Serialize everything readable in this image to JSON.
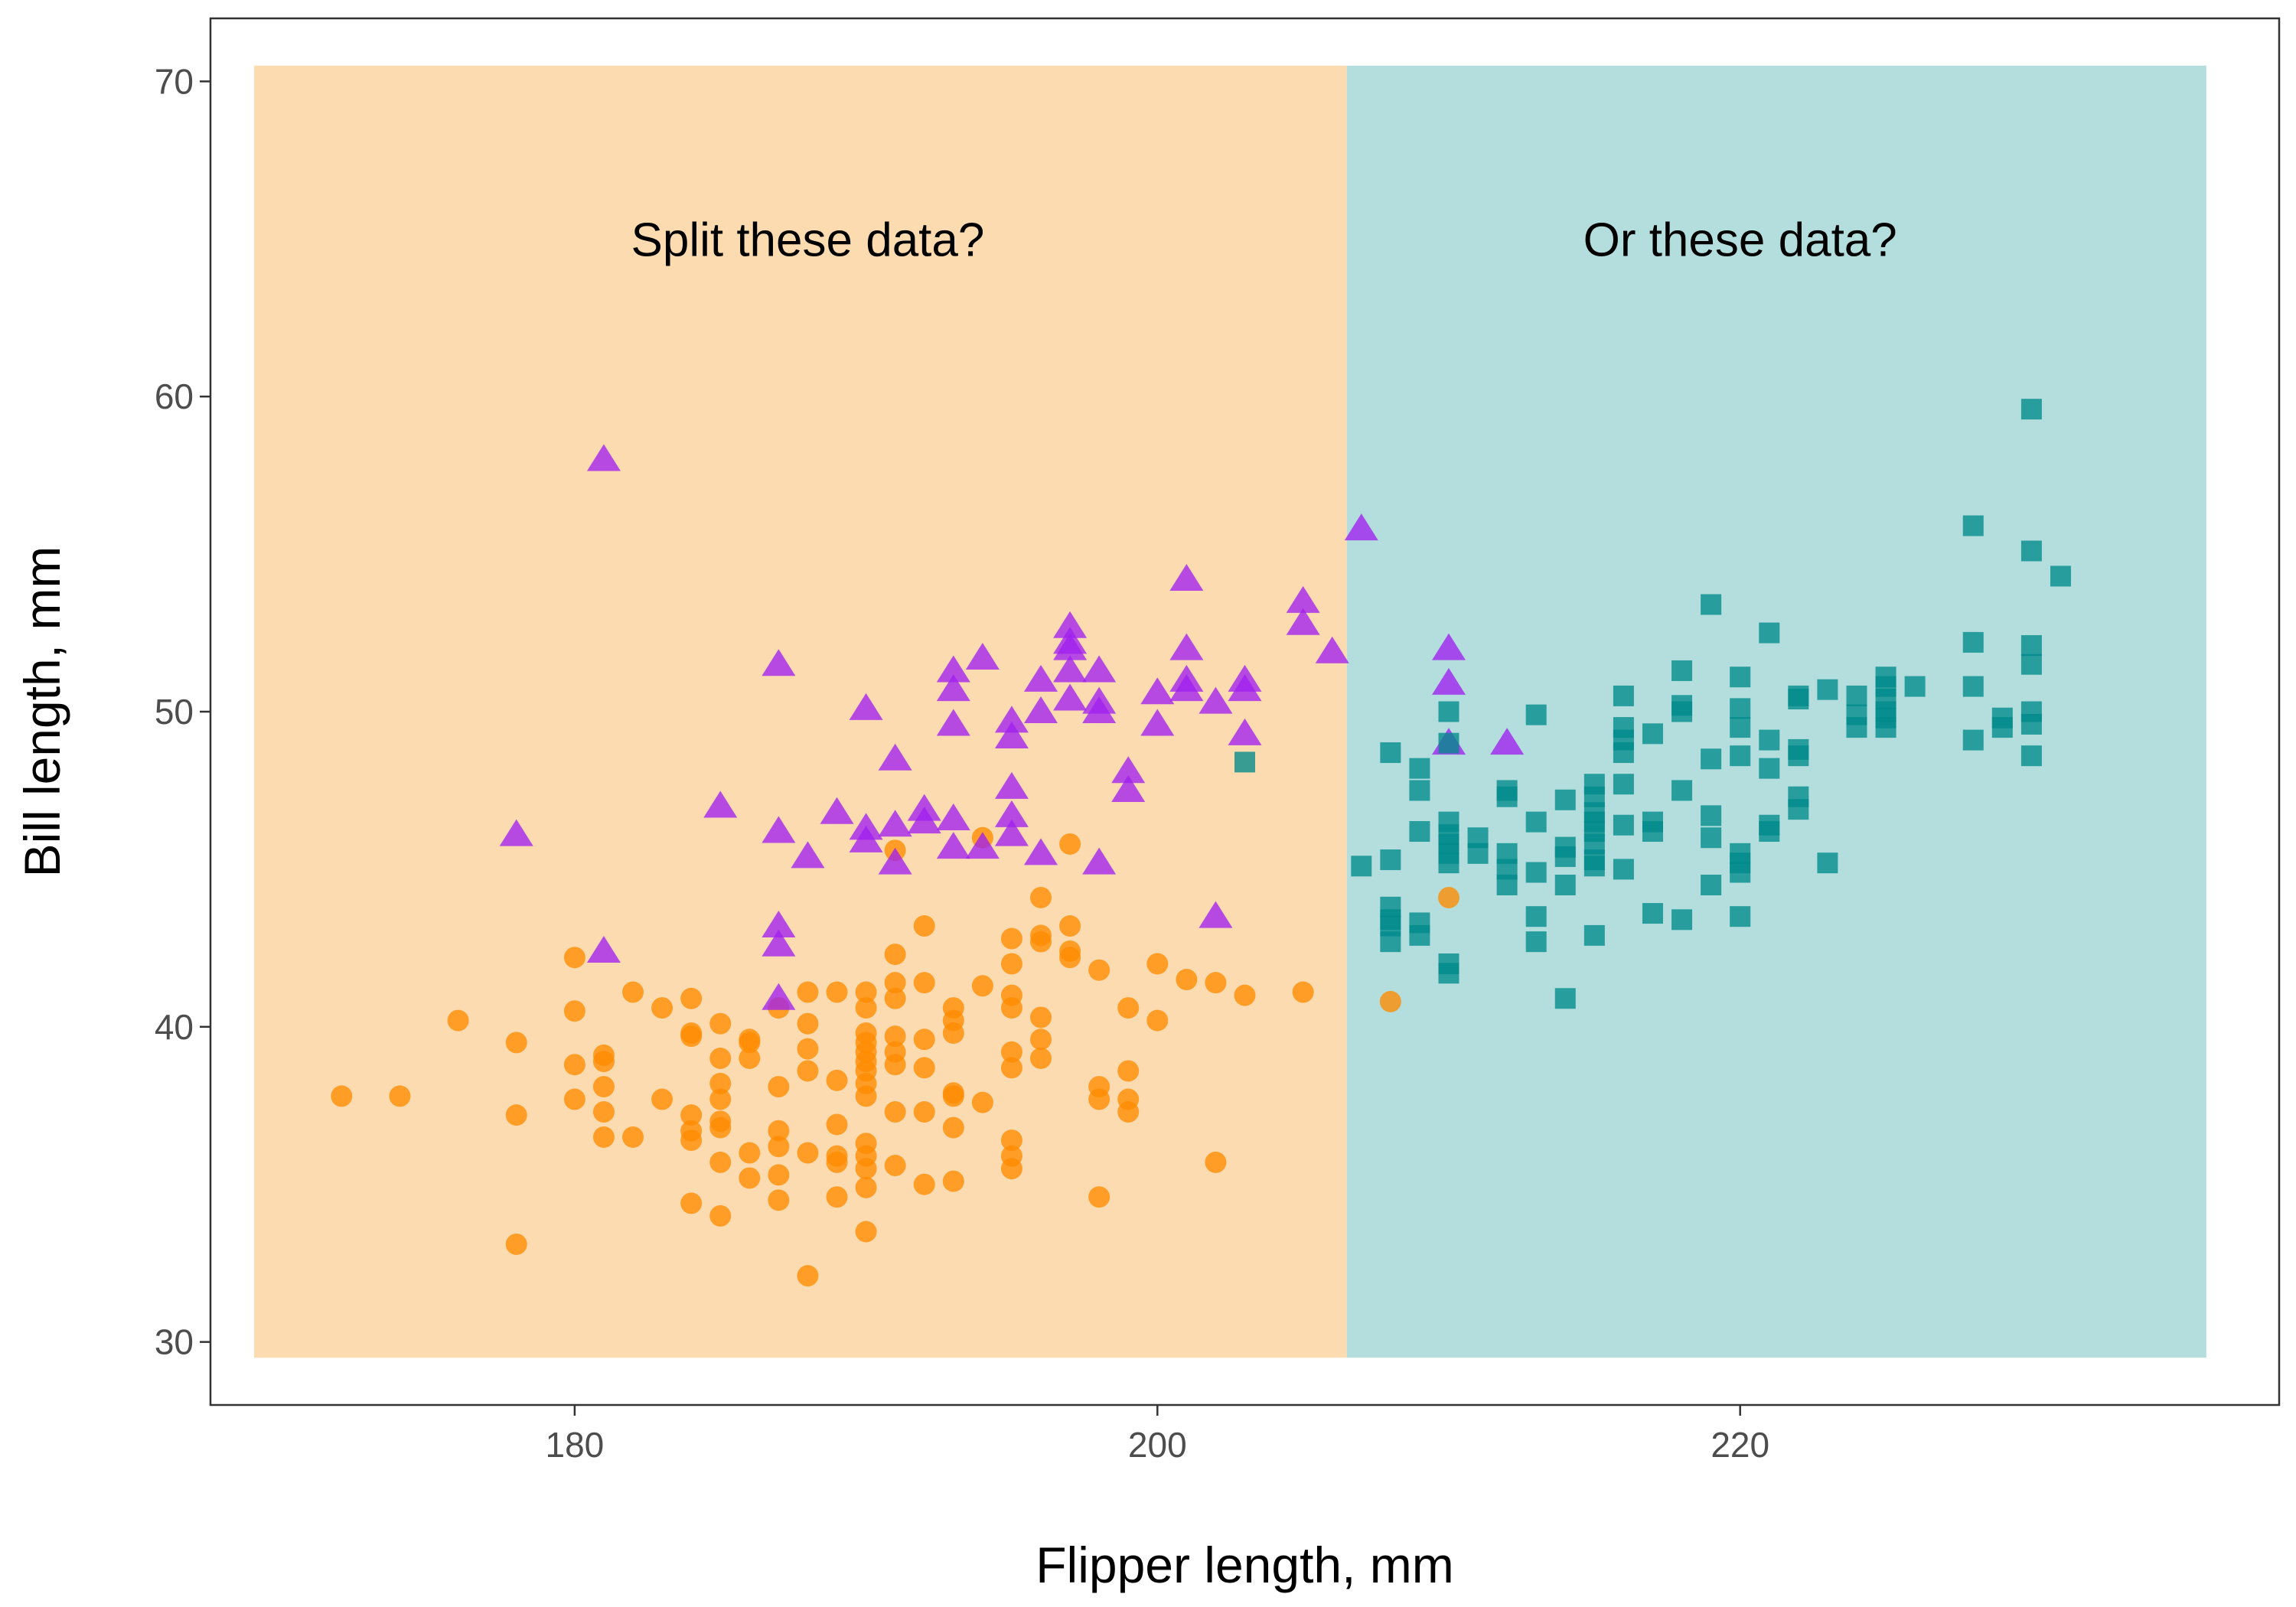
{
  "chart_data": {
    "type": "scatter",
    "title": "",
    "xlabel": "Flipper length, mm",
    "ylabel": "Bill length, mm",
    "xlim": [
      167.5,
      238.5
    ],
    "ylim": [
      28,
      72
    ],
    "x_ticks": [
      180,
      200,
      220
    ],
    "y_ticks": [
      30,
      40,
      50,
      60,
      70
    ],
    "grid": false,
    "legend": "none",
    "colors": {
      "region_left": "#fddbb0",
      "region_right": "#b3dedd",
      "circle_series": "#ff8c00",
      "triangle_series": "#a020f0",
      "square_series": "#008b8b",
      "panel_border": "#333333"
    },
    "regions": [
      {
        "x_from": 169,
        "x_to": 206.5,
        "y_from": 29.5,
        "y_to": 70.5,
        "fill": "#fddbb0"
      },
      {
        "x_from": 206.5,
        "x_to": 236,
        "y_from": 29.5,
        "y_to": 70.5,
        "fill": "#b3dedd"
      }
    ],
    "annotations": [
      {
        "text": "Split these data?",
        "x": 188,
        "y": 65
      },
      {
        "text": "Or these data?",
        "x": 220,
        "y": 65
      }
    ],
    "series": [
      {
        "marker": "circle",
        "color": "#ff8c00",
        "points": [
          [
            172,
            37.8
          ],
          [
            174,
            37.8
          ],
          [
            176,
            40.2
          ],
          [
            178,
            39.5
          ],
          [
            178,
            37.2
          ],
          [
            178,
            33.1
          ],
          [
            180,
            42.2
          ],
          [
            180,
            40.5
          ],
          [
            180,
            38.8
          ],
          [
            180,
            37.7
          ],
          [
            181,
            39.1
          ],
          [
            181,
            38.9
          ],
          [
            181,
            38.1
          ],
          [
            181,
            37.3
          ],
          [
            181,
            36.5
          ],
          [
            182,
            41.1
          ],
          [
            182,
            36.5
          ],
          [
            183,
            40.6
          ],
          [
            183,
            37.7
          ],
          [
            184,
            40.9
          ],
          [
            184,
            39.8
          ],
          [
            184,
            39.7
          ],
          [
            184,
            37.2
          ],
          [
            184,
            36.7
          ],
          [
            184,
            36.4
          ],
          [
            184,
            34.4
          ],
          [
            185,
            40.1
          ],
          [
            185,
            39.0
          ],
          [
            185,
            38.2
          ],
          [
            185,
            37.7
          ],
          [
            185,
            37.0
          ],
          [
            185,
            36.8
          ],
          [
            185,
            35.7
          ],
          [
            185,
            34.0
          ],
          [
            186,
            39.6
          ],
          [
            186,
            39.5
          ],
          [
            186,
            39.0
          ],
          [
            186,
            36.0
          ],
          [
            186,
            35.2
          ],
          [
            187,
            40.6
          ],
          [
            187,
            38.1
          ],
          [
            187,
            36.7
          ],
          [
            187,
            36.2
          ],
          [
            187,
            35.3
          ],
          [
            187,
            34.5
          ],
          [
            188,
            41.1
          ],
          [
            188,
            40.1
          ],
          [
            188,
            39.3
          ],
          [
            188,
            38.6
          ],
          [
            188,
            36.0
          ],
          [
            188,
            32.1
          ],
          [
            189,
            41.1
          ],
          [
            189,
            38.3
          ],
          [
            189,
            36.9
          ],
          [
            189,
            35.9
          ],
          [
            189,
            35.7
          ],
          [
            189,
            34.6
          ],
          [
            190,
            41.1
          ],
          [
            190,
            40.6
          ],
          [
            190,
            39.8
          ],
          [
            190,
            39.5
          ],
          [
            190,
            39.2
          ],
          [
            190,
            38.9
          ],
          [
            190,
            38.6
          ],
          [
            190,
            38.2
          ],
          [
            190,
            37.8
          ],
          [
            190,
            36.3
          ],
          [
            190,
            35.9
          ],
          [
            190,
            35.5
          ],
          [
            190,
            34.9
          ],
          [
            190,
            33.5
          ],
          [
            191,
            45.6
          ],
          [
            191,
            42.3
          ],
          [
            191,
            41.4
          ],
          [
            191,
            40.9
          ],
          [
            191,
            39.7
          ],
          [
            191,
            39.2
          ],
          [
            191,
            38.8
          ],
          [
            191,
            37.3
          ],
          [
            191,
            35.6
          ],
          [
            192,
            43.2
          ],
          [
            192,
            41.4
          ],
          [
            192,
            39.6
          ],
          [
            192,
            38.7
          ],
          [
            192,
            37.3
          ],
          [
            192,
            35.0
          ],
          [
            193,
            40.6
          ],
          [
            193,
            40.2
          ],
          [
            193,
            39.8
          ],
          [
            193,
            37.9
          ],
          [
            193,
            37.8
          ],
          [
            193,
            36.8
          ],
          [
            193,
            35.1
          ],
          [
            194,
            46.0
          ],
          [
            194,
            41.3
          ],
          [
            194,
            37.6
          ],
          [
            195,
            42.8
          ],
          [
            195,
            42.0
          ],
          [
            195,
            41.0
          ],
          [
            195,
            40.6
          ],
          [
            195,
            39.2
          ],
          [
            195,
            38.7
          ],
          [
            195,
            36.4
          ],
          [
            195,
            35.9
          ],
          [
            195,
            35.5
          ],
          [
            196,
            44.1
          ],
          [
            196,
            42.9
          ],
          [
            196,
            42.7
          ],
          [
            196,
            40.3
          ],
          [
            196,
            39.6
          ],
          [
            196,
            39.0
          ],
          [
            197,
            45.8
          ],
          [
            197,
            43.2
          ],
          [
            197,
            42.4
          ],
          [
            197,
            42.2
          ],
          [
            198,
            41.8
          ],
          [
            198,
            38.1
          ],
          [
            198,
            37.7
          ],
          [
            198,
            34.6
          ],
          [
            199,
            40.6
          ],
          [
            199,
            38.6
          ],
          [
            199,
            37.7
          ],
          [
            199,
            37.3
          ],
          [
            200,
            42.0
          ],
          [
            200,
            40.2
          ],
          [
            201,
            41.5
          ],
          [
            202,
            41.4
          ],
          [
            202,
            35.7
          ],
          [
            203,
            41.0
          ],
          [
            205,
            41.1
          ],
          [
            208,
            40.8
          ],
          [
            210,
            44.1
          ]
        ]
      },
      {
        "marker": "triangle",
        "color": "#a020f0",
        "points": [
          [
            178,
            46.1
          ],
          [
            181,
            58.0
          ],
          [
            181,
            42.4
          ],
          [
            185,
            47.0
          ],
          [
            187,
            51.5
          ],
          [
            187,
            46.2
          ],
          [
            187,
            43.2
          ],
          [
            187,
            42.6
          ],
          [
            187,
            40.9
          ],
          [
            188,
            45.4
          ],
          [
            189,
            46.8
          ],
          [
            190,
            50.1
          ],
          [
            190,
            46.3
          ],
          [
            190,
            45.9
          ],
          [
            191,
            48.5
          ],
          [
            191,
            46.4
          ],
          [
            191,
            45.2
          ],
          [
            192,
            46.9
          ],
          [
            192,
            46.5
          ],
          [
            193,
            51.3
          ],
          [
            193,
            50.7
          ],
          [
            193,
            49.6
          ],
          [
            193,
            46.6
          ],
          [
            193,
            45.7
          ],
          [
            194,
            51.7
          ],
          [
            194,
            45.7
          ],
          [
            195,
            49.7
          ],
          [
            195,
            49.2
          ],
          [
            195,
            47.6
          ],
          [
            195,
            46.7
          ],
          [
            195,
            46.1
          ],
          [
            196,
            51.0
          ],
          [
            196,
            50.0
          ],
          [
            196,
            45.5
          ],
          [
            197,
            52.7
          ],
          [
            197,
            52.2
          ],
          [
            197,
            52.0
          ],
          [
            197,
            51.3
          ],
          [
            197,
            50.4
          ],
          [
            198,
            51.3
          ],
          [
            198,
            50.3
          ],
          [
            198,
            50.0
          ],
          [
            198,
            45.2
          ],
          [
            199,
            48.1
          ],
          [
            199,
            47.5
          ],
          [
            200,
            50.6
          ],
          [
            200,
            49.6
          ],
          [
            201,
            54.2
          ],
          [
            201,
            52.0
          ],
          [
            201,
            51.0
          ],
          [
            201,
            50.7
          ],
          [
            202,
            50.3
          ],
          [
            202,
            43.5
          ],
          [
            203,
            51.0
          ],
          [
            203,
            50.7
          ],
          [
            203,
            49.3
          ],
          [
            205,
            53.5
          ],
          [
            205,
            52.8
          ],
          [
            206,
            51.9
          ],
          [
            207,
            55.8
          ],
          [
            210,
            52.0
          ],
          [
            210,
            50.9
          ],
          [
            210,
            49.0
          ],
          [
            212,
            49.0
          ]
        ]
      },
      {
        "marker": "square",
        "color": "#008b8b",
        "points": [
          [
            203,
            48.4
          ],
          [
            207,
            45.1
          ],
          [
            208,
            48.7
          ],
          [
            208,
            45.3
          ],
          [
            208,
            43.8
          ],
          [
            208,
            43.4
          ],
          [
            208,
            43.2
          ],
          [
            208,
            42.7
          ],
          [
            209,
            48.2
          ],
          [
            209,
            47.5
          ],
          [
            209,
            46.2
          ],
          [
            209,
            43.3
          ],
          [
            209,
            42.9
          ],
          [
            210,
            50.0
          ],
          [
            210,
            49.0
          ],
          [
            210,
            46.5
          ],
          [
            210,
            46.1
          ],
          [
            210,
            45.8
          ],
          [
            210,
            45.5
          ],
          [
            210,
            45.2
          ],
          [
            210,
            42.0
          ],
          [
            210,
            41.7
          ],
          [
            211,
            46.0
          ],
          [
            211,
            45.5
          ],
          [
            212,
            47.5
          ],
          [
            212,
            47.3
          ],
          [
            212,
            45.5
          ],
          [
            212,
            45.0
          ],
          [
            212,
            44.5
          ],
          [
            213,
            49.9
          ],
          [
            213,
            46.5
          ],
          [
            213,
            44.9
          ],
          [
            213,
            43.5
          ],
          [
            213,
            42.7
          ],
          [
            214,
            47.2
          ],
          [
            214,
            45.7
          ],
          [
            214,
            45.4
          ],
          [
            214,
            44.5
          ],
          [
            214,
            40.9
          ],
          [
            215,
            47.7
          ],
          [
            215,
            47.3
          ],
          [
            215,
            46.8
          ],
          [
            215,
            46.5
          ],
          [
            215,
            46.2
          ],
          [
            215,
            45.8
          ],
          [
            215,
            45.3
          ],
          [
            215,
            45.1
          ],
          [
            215,
            42.9
          ],
          [
            216,
            50.5
          ],
          [
            216,
            49.5
          ],
          [
            216,
            49.1
          ],
          [
            216,
            48.7
          ],
          [
            216,
            47.7
          ],
          [
            216,
            46.4
          ],
          [
            216,
            45.0
          ],
          [
            217,
            49.3
          ],
          [
            217,
            46.5
          ],
          [
            217,
            46.2
          ],
          [
            217,
            43.6
          ],
          [
            218,
            51.3
          ],
          [
            218,
            50.2
          ],
          [
            218,
            50.0
          ],
          [
            218,
            47.5
          ],
          [
            218,
            43.4
          ],
          [
            219,
            53.4
          ],
          [
            219,
            48.5
          ],
          [
            219,
            46.7
          ],
          [
            219,
            46.0
          ],
          [
            219,
            44.5
          ],
          [
            220,
            51.1
          ],
          [
            220,
            50.1
          ],
          [
            220,
            49.5
          ],
          [
            220,
            48.6
          ],
          [
            220,
            45.5
          ],
          [
            220,
            45.2
          ],
          [
            220,
            44.9
          ],
          [
            220,
            43.5
          ],
          [
            221,
            52.5
          ],
          [
            221,
            49.1
          ],
          [
            221,
            48.2
          ],
          [
            221,
            46.4
          ],
          [
            221,
            46.2
          ],
          [
            222,
            50.5
          ],
          [
            222,
            50.4
          ],
          [
            222,
            48.8
          ],
          [
            222,
            48.6
          ],
          [
            222,
            47.3
          ],
          [
            222,
            46.9
          ],
          [
            223,
            50.7
          ],
          [
            223,
            45.2
          ],
          [
            224,
            50.5
          ],
          [
            224,
            49.9
          ],
          [
            224,
            49.5
          ],
          [
            225,
            51.1
          ],
          [
            225,
            50.8
          ],
          [
            225,
            50.4
          ],
          [
            225,
            50.0
          ],
          [
            225,
            49.8
          ],
          [
            225,
            49.5
          ],
          [
            226,
            50.8
          ],
          [
            228,
            55.9
          ],
          [
            228,
            52.2
          ],
          [
            228,
            50.8
          ],
          [
            228,
            49.1
          ],
          [
            229,
            49.8
          ],
          [
            229,
            49.5
          ],
          [
            230,
            59.6
          ],
          [
            230,
            55.1
          ],
          [
            230,
            52.1
          ],
          [
            230,
            51.5
          ],
          [
            230,
            50.0
          ],
          [
            230,
            49.6
          ],
          [
            230,
            48.6
          ],
          [
            231,
            54.3
          ]
        ]
      }
    ]
  }
}
